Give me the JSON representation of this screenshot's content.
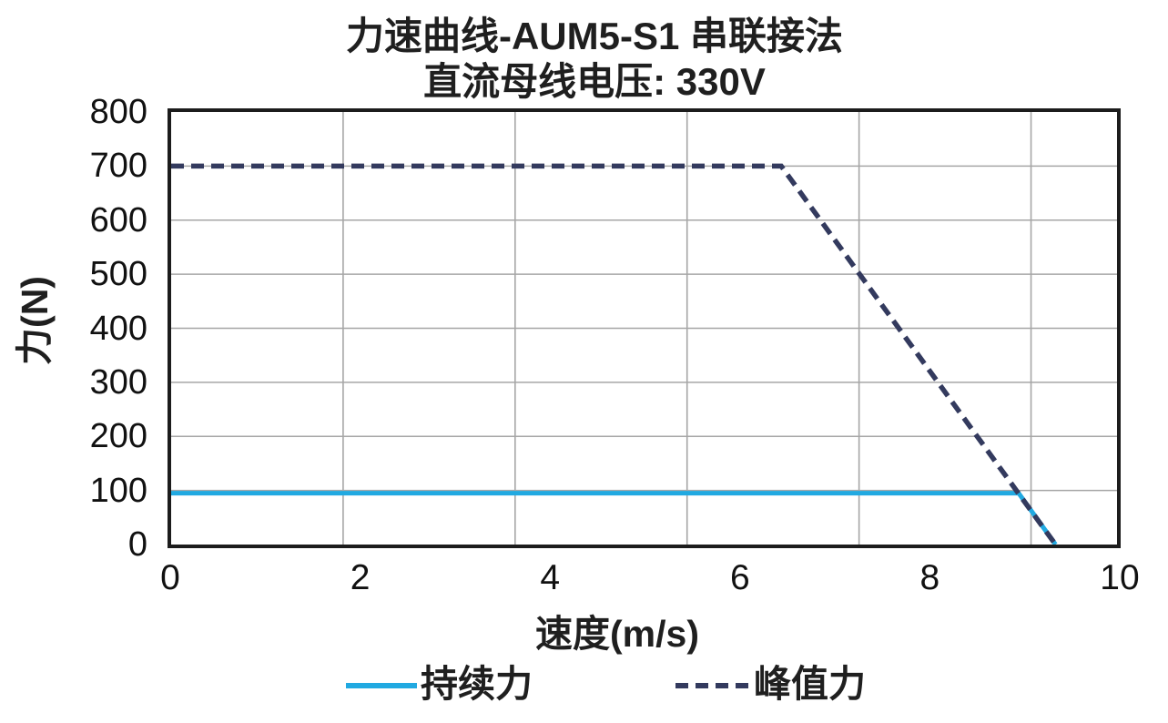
{
  "chart_data": {
    "type": "line",
    "title": "力速曲线-AUM5-S1 串联接法",
    "subtitle": "直流母线电压: 330V",
    "xlabel": "速度(m/s)",
    "ylabel": "力(N)",
    "xlim": [
      0,
      10
    ],
    "ylim": [
      0,
      800
    ],
    "x_ticks": [
      "0",
      "2",
      "4",
      "6",
      "8",
      "10"
    ],
    "y_ticks": [
      "0",
      "100",
      "200",
      "300",
      "400",
      "500",
      "600",
      "700",
      "800"
    ],
    "grid": true,
    "legend_position": "bottom",
    "series": [
      {
        "name": "持续力",
        "line_style": "solid",
        "color": "#21A9E1",
        "points": [
          [
            0,
            95
          ],
          [
            8.96,
            95
          ],
          [
            9.35,
            0
          ]
        ]
      },
      {
        "name": "峰值力",
        "line_style": "dashed",
        "color": "#333A5E",
        "points": [
          [
            0,
            700
          ],
          [
            6.45,
            700
          ],
          [
            9.35,
            0
          ]
        ]
      }
    ],
    "colors": {
      "grid": "#A6A6A6",
      "axis_border": "#1C1C1C",
      "text": "#1F1F1F"
    }
  }
}
